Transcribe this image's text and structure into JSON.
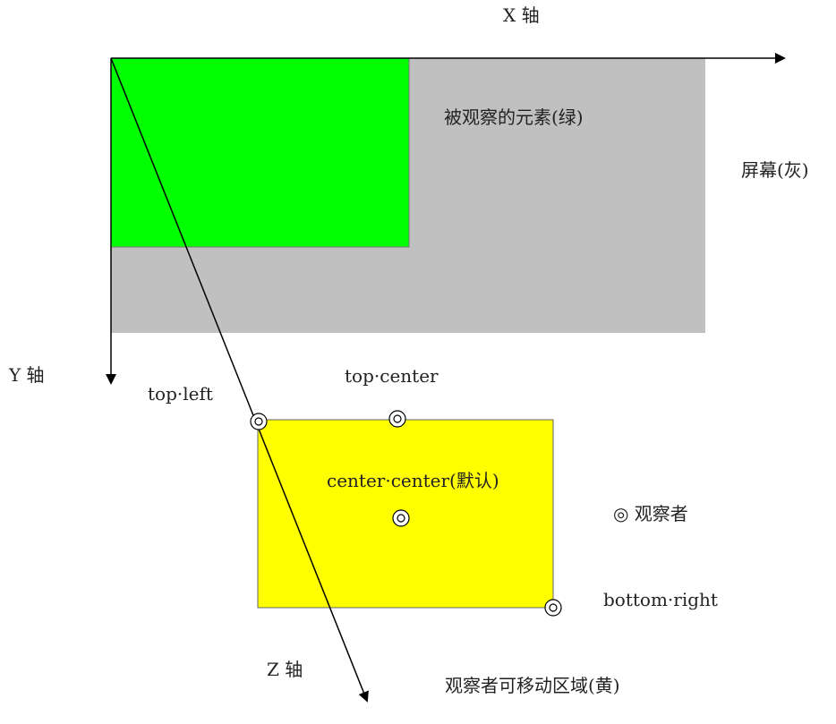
{
  "colors": {
    "screen": "#c0c0c0",
    "element": "#00ff00",
    "movable_area": "#ffff00",
    "axis": "#000000"
  },
  "axes": {
    "x_label": "X 轴",
    "y_label": "Y 轴",
    "z_label": "Z 轴"
  },
  "labels": {
    "observed_element": "被观察的元素(绿)",
    "screen": "屏幕(灰)",
    "top_left": "top·left",
    "top_center": "top·center",
    "center_center": "center·center(默认)",
    "bottom_right": "bottom·right",
    "observer_legend": "◎ 观察者",
    "movable_area": "观察者可移动区域(黄)"
  },
  "observer_positions": [
    "top-left",
    "top-center",
    "center-center",
    "bottom-right"
  ],
  "observer_icon": "double-circle-icon"
}
